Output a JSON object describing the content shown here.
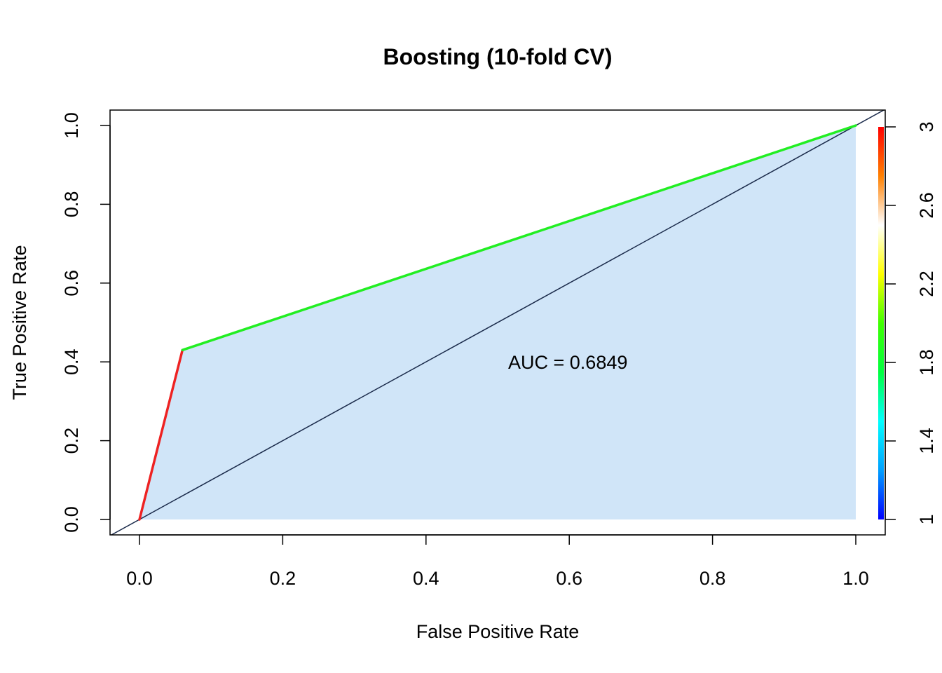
{
  "chart_data": {
    "type": "line",
    "title": "Boosting (10-fold CV)",
    "xlabel": "False Positive Rate",
    "ylabel": "True Positive Rate",
    "xlim": [
      0,
      1
    ],
    "ylim": [
      0,
      1
    ],
    "x_ticks": [
      "0.0",
      "0.2",
      "0.4",
      "0.6",
      "0.8",
      "1.0"
    ],
    "y_ticks": [
      "0.0",
      "0.2",
      "0.4",
      "0.6",
      "0.8",
      "1.0"
    ],
    "roc_points": [
      {
        "x": 0.0,
        "y": 0.0,
        "cutoff": 3
      },
      {
        "x": 0.06,
        "y": 0.43,
        "cutoff": 2
      },
      {
        "x": 1.0,
        "y": 1.0,
        "cutoff": 1
      }
    ],
    "segment_colors": [
      "#ee2222",
      "#22ee22"
    ],
    "fill_color": "#d0e5f8",
    "diagonal_color": "#1a2a4a",
    "annotation": {
      "text": "AUC = 0.6849",
      "x": 0.6,
      "y": 0.4
    },
    "colorbar": {
      "ticks": [
        "1",
        "1.4",
        "1.8",
        "2.2",
        "2.6",
        "3"
      ],
      "range": [
        1,
        3
      ],
      "colors": [
        "#0000ff",
        "#00a0ff",
        "#00ffff",
        "#00ff40",
        "#40ff00",
        "#ffff00",
        "#ffffff",
        "#ff8000",
        "#ff0000"
      ]
    }
  }
}
